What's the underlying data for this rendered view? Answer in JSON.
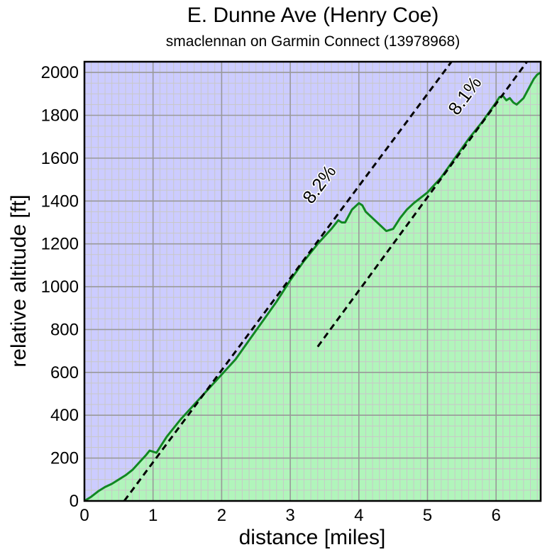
{
  "chart_data": {
    "type": "area",
    "title": "E. Dunne Ave (Henry Coe)",
    "subtitle": "smaclennan on Garmin Connect (13978968)",
    "xlabel": "distance [miles]",
    "ylabel": "relative altitude [ft]",
    "xlim": [
      0,
      6.65
    ],
    "ylim": [
      0,
      2050
    ],
    "x_ticks": [
      0,
      1,
      2,
      3,
      4,
      5,
      6
    ],
    "y_ticks": [
      0,
      200,
      400,
      600,
      800,
      1000,
      1200,
      1400,
      1600,
      1800,
      2000
    ],
    "grid": true,
    "colors": {
      "background": "#ccccff",
      "fill": "#aaffaa",
      "line": "#118822",
      "major_grid": "#999999",
      "minor_grid": "#c8c8c8"
    },
    "series": [
      {
        "x": [
          0,
          0.1,
          0.2,
          0.3,
          0.4,
          0.5,
          0.6,
          0.7,
          0.8,
          0.9,
          0.95,
          1.0,
          1.05,
          1.2,
          1.4,
          1.6,
          1.8,
          2.0,
          2.2,
          2.4,
          2.6,
          2.8,
          3.0,
          3.2,
          3.4,
          3.6,
          3.7,
          3.75,
          3.8,
          3.9,
          4.0,
          4.05,
          4.1,
          4.2,
          4.3,
          4.4,
          4.5,
          4.6,
          4.7,
          4.8,
          5.0,
          5.2,
          5.4,
          5.6,
          5.8,
          6.0,
          6.05,
          6.1,
          6.15,
          6.2,
          6.25,
          6.3,
          6.4,
          6.5,
          6.55,
          6.6,
          6.65
        ],
        "y": [
          0,
          20,
          45,
          65,
          80,
          100,
          120,
          145,
          180,
          215,
          235,
          230,
          225,
          300,
          380,
          450,
          520,
          590,
          660,
          750,
          840,
          930,
          1030,
          1120,
          1200,
          1270,
          1310,
          1300,
          1300,
          1360,
          1390,
          1380,
          1350,
          1320,
          1290,
          1260,
          1270,
          1320,
          1360,
          1390,
          1440,
          1510,
          1600,
          1690,
          1770,
          1860,
          1885,
          1890,
          1870,
          1880,
          1860,
          1850,
          1880,
          1940,
          1970,
          1990,
          2000
        ]
      }
    ],
    "slope_lines": [
      {
        "label": "8.2%",
        "x1": 0.58,
        "y1": 0,
        "x2": 5.35,
        "y2": 2050
      },
      {
        "label": "8.1%",
        "x1": 3.4,
        "y1": 720,
        "x2": 6.45,
        "y2": 2050
      }
    ]
  }
}
